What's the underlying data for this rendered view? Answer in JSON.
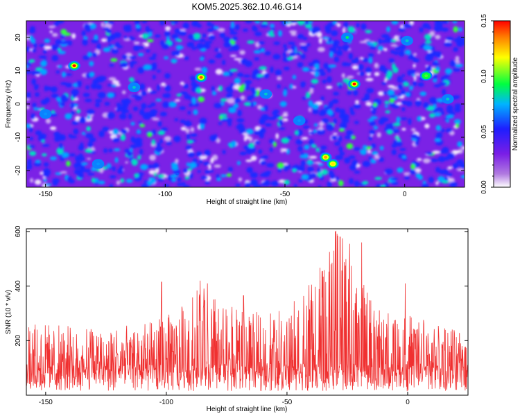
{
  "title": "KOM5.2025.362.10.46.G14",
  "chart_data": [
    {
      "type": "heatmap",
      "title": "KOM5.2025.362.10.46.G14",
      "xlabel": "Height of straight line (km)",
      "ylabel": "Frequency (Hz)",
      "xlim": [
        -158,
        25
      ],
      "ylim": [
        -25,
        25
      ],
      "x_ticks": [
        -150,
        -100,
        -50,
        0
      ],
      "x_tick_labels": [
        "-150",
        "-100",
        "-50",
        "0"
      ],
      "y_ticks": [
        -20,
        -10,
        0,
        10,
        20
      ],
      "y_tick_labels": [
        "-20",
        "-10",
        "0",
        "10",
        "20"
      ],
      "colorbar": {
        "label": "Normalized spectral amplitude",
        "range": [
          0.0,
          0.15
        ],
        "ticks": [
          0.0,
          0.05,
          0.1,
          0.15
        ],
        "tick_labels": [
          "0.00",
          "0.05",
          "0.10",
          "0.15"
        ]
      },
      "colormap": [
        "#ffffff",
        "#8a2be2",
        "#1e1eff",
        "#00c8ff",
        "#00ff00",
        "#ffff00",
        "#ff0000"
      ],
      "notes": "Random-looking speckle of spectral amplitude; mostly low values (purple/blue) with scattered peaks",
      "peaks": [
        {
          "x": -138,
          "y": 11.5,
          "value": 0.15
        },
        {
          "x": -85,
          "y": 8,
          "value": 0.14
        },
        {
          "x": -21,
          "y": 6,
          "value": 0.15
        },
        {
          "x": -33,
          "y": -16,
          "value": 0.13
        },
        {
          "x": -30,
          "y": -18,
          "value": 0.12
        },
        {
          "x": 9,
          "y": 8.5,
          "value": 0.1
        },
        {
          "x": -58,
          "y": 3,
          "value": 0.08
        },
        {
          "x": -113,
          "y": 5,
          "value": 0.08
        },
        {
          "x": -150,
          "y": -3,
          "value": 0.07
        },
        {
          "x": 18,
          "y": 1.5,
          "value": 0.08
        },
        {
          "x": -24,
          "y": 20,
          "value": 0.09
        },
        {
          "x": -44,
          "y": -5,
          "value": 0.07
        },
        {
          "x": 1,
          "y": 19,
          "value": 0.08
        },
        {
          "x": -128,
          "y": -18,
          "value": 0.07
        },
        {
          "x": -95,
          "y": -21,
          "value": 0.06
        }
      ]
    },
    {
      "type": "line",
      "xlabel": "Height of straight line (km)",
      "ylabel": "SNR (10 * v/v)",
      "xlim": [
        -158,
        25
      ],
      "ylim": [
        0,
        610
      ],
      "x_ticks": [
        -150,
        -100,
        -50,
        0
      ],
      "x_tick_labels": [
        "-150",
        "-100",
        "-50",
        "0"
      ],
      "y_ticks": [
        200,
        400,
        600
      ],
      "y_tick_labels": [
        "200",
        "400",
        "600"
      ],
      "series": [
        {
          "name": "SNR",
          "color": "#f03030",
          "noise_floor": 70,
          "noise_range": 150,
          "envelope": [
            {
              "x": -158,
              "max": 270
            },
            {
              "x": -135,
              "max": 250
            },
            {
              "x": -110,
              "max": 260
            },
            {
              "x": -100,
              "max": 290
            },
            {
              "x": -92,
              "max": 340
            },
            {
              "x": -85,
              "max": 420
            },
            {
              "x": -78,
              "max": 340
            },
            {
              "x": -65,
              "max": 300
            },
            {
              "x": -50,
              "max": 330
            },
            {
              "x": -40,
              "max": 420
            },
            {
              "x": -30,
              "max": 610
            },
            {
              "x": -20,
              "max": 430
            },
            {
              "x": -10,
              "max": 310
            },
            {
              "x": 0,
              "max": 300
            },
            {
              "x": 10,
              "max": 270
            },
            {
              "x": 25,
              "max": 250
            }
          ],
          "spikes": [
            {
              "x": -102,
              "value": 415
            },
            {
              "x": -86,
              "value": 420
            },
            {
              "x": -83,
              "value": 410
            },
            {
              "x": -68,
              "value": 365
            },
            {
              "x": -47,
              "value": 345
            },
            {
              "x": -34,
              "value": 415
            },
            {
              "x": -30,
              "value": 600
            },
            {
              "x": -28,
              "value": 580
            },
            {
              "x": -27,
              "value": 575
            },
            {
              "x": -24,
              "value": 555
            },
            {
              "x": -19,
              "value": 560
            },
            {
              "x": -1,
              "value": 410
            }
          ]
        }
      ]
    }
  ]
}
